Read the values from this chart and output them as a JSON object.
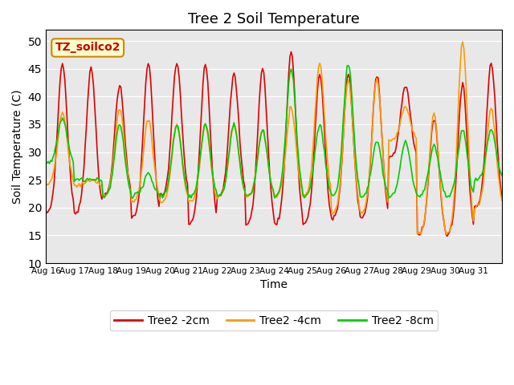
{
  "title": "Tree 2 Soil Temperature",
  "xlabel": "Time",
  "ylabel": "Soil Temperature (C)",
  "ylim": [
    10,
    52
  ],
  "yticks": [
    10,
    15,
    20,
    25,
    30,
    35,
    40,
    45,
    50
  ],
  "x_labels": [
    "Aug 16",
    "Aug 17",
    "Aug 18",
    "Aug 19",
    "Aug 20",
    "Aug 21",
    "Aug 22",
    "Aug 23",
    "Aug 24",
    "Aug 25",
    "Aug 26",
    "Aug 27",
    "Aug 28",
    "Aug 29",
    "Aug 30",
    "Aug 31"
  ],
  "bg_color": "#e8e8e8",
  "annotation_text": "TZ_soilco2",
  "annotation_box_color": "#ffffcc",
  "annotation_border_color": "#cc8800",
  "line_colors": {
    "2cm": "#dd0000",
    "4cm": "#ff9900",
    "8cm": "#00cc00"
  },
  "legend_labels": [
    "Tree2 -2cm",
    "Tree2 -4cm",
    "Tree2 -8cm"
  ],
  "days": 16,
  "pts_per_day": 24,
  "day_peaks_2cm": [
    46,
    45,
    42,
    46,
    46,
    46,
    44,
    45,
    48,
    44,
    44,
    44,
    42,
    36,
    42,
    46
  ],
  "day_mins_2cm": [
    19,
    19,
    22,
    18,
    22,
    17,
    22,
    17,
    17,
    17,
    18,
    18,
    29,
    15,
    15,
    20
  ],
  "day_peaks_4cm": [
    37,
    25,
    38,
    36,
    35,
    35,
    35,
    34,
    38,
    46,
    43,
    43,
    38,
    37,
    50,
    38
  ],
  "day_mins_4cm": [
    24,
    24,
    22,
    21,
    21,
    21,
    22,
    22,
    22,
    22,
    19,
    19,
    32,
    15,
    15,
    20
  ],
  "day_peaks_8cm": [
    36,
    25,
    35,
    26,
    35,
    35,
    35,
    34,
    45,
    35,
    46,
    32,
    32,
    31,
    34,
    34
  ],
  "day_mins_8cm": [
    28,
    25,
    22,
    22,
    22,
    22,
    22,
    22,
    22,
    22,
    22,
    22,
    22,
    22,
    22,
    25
  ]
}
